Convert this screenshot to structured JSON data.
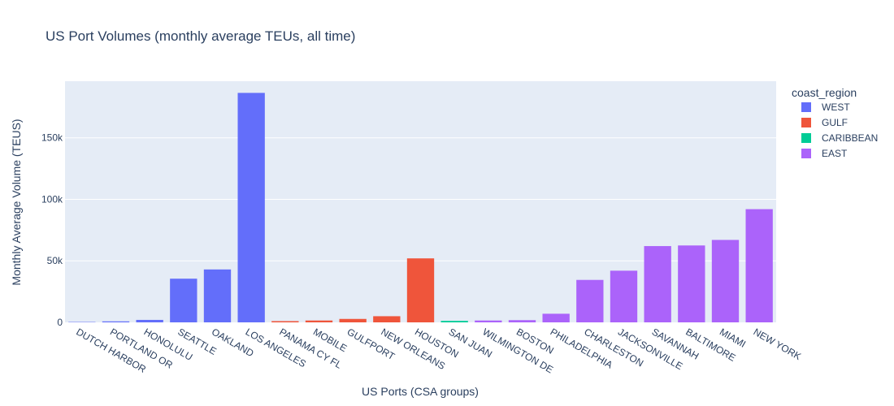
{
  "chart_data": {
    "type": "bar",
    "title": "US Port Volumes (monthly average TEUs, all time)",
    "xlabel": "US Ports (CSA groups)",
    "ylabel": "Monthly Average Volume (TEUS)",
    "ylim": [
      0,
      196000
    ],
    "yticks": [
      0,
      50000,
      100000,
      150000
    ],
    "ytick_labels": [
      "0",
      "50k",
      "100k",
      "150k"
    ],
    "grid": true,
    "legend": {
      "title": "coast_region",
      "position": "top-right",
      "entries": [
        {
          "name": "WEST",
          "color": "#636efa"
        },
        {
          "name": "GULF",
          "color": "#ef553b"
        },
        {
          "name": "CARIBBEAN",
          "color": "#00cc96"
        },
        {
          "name": "EAST",
          "color": "#ab63fa"
        }
      ]
    },
    "bars": [
      {
        "category": "DUTCH HARBOR",
        "value": 300,
        "series": "WEST"
      },
      {
        "category": "PORTLAND OR",
        "value": 800,
        "series": "WEST"
      },
      {
        "category": "HONOLULU",
        "value": 2000,
        "series": "WEST"
      },
      {
        "category": "SEATTLE",
        "value": 35500,
        "series": "WEST"
      },
      {
        "category": "OAKLAND",
        "value": 43000,
        "series": "WEST"
      },
      {
        "category": "LOS ANGELES",
        "value": 186500,
        "series": "WEST"
      },
      {
        "category": "PANAMA CY FL",
        "value": 1000,
        "series": "GULF"
      },
      {
        "category": "MOBILE",
        "value": 1500,
        "series": "GULF"
      },
      {
        "category": "GULFPORT",
        "value": 2800,
        "series": "GULF"
      },
      {
        "category": "NEW ORLEANS",
        "value": 5000,
        "series": "GULF"
      },
      {
        "category": "HOUSTON",
        "value": 52000,
        "series": "GULF"
      },
      {
        "category": "SAN JUAN",
        "value": 1200,
        "series": "CARIBBEAN"
      },
      {
        "category": "WILMINGTON DE",
        "value": 1500,
        "series": "EAST"
      },
      {
        "category": "BOSTON",
        "value": 1800,
        "series": "EAST"
      },
      {
        "category": "PHILADELPHIA",
        "value": 7000,
        "series": "EAST"
      },
      {
        "category": "CHARLESTON",
        "value": 34500,
        "series": "EAST"
      },
      {
        "category": "JACKSONVILLE",
        "value": 42000,
        "series": "EAST"
      },
      {
        "category": "SAVANNAH",
        "value": 62000,
        "series": "EAST"
      },
      {
        "category": "BALTIMORE",
        "value": 62500,
        "series": "EAST"
      },
      {
        "category": "MIAMI",
        "value": 67000,
        "series": "EAST"
      },
      {
        "category": "NEW YORK",
        "value": 92000,
        "series": "EAST"
      }
    ]
  }
}
